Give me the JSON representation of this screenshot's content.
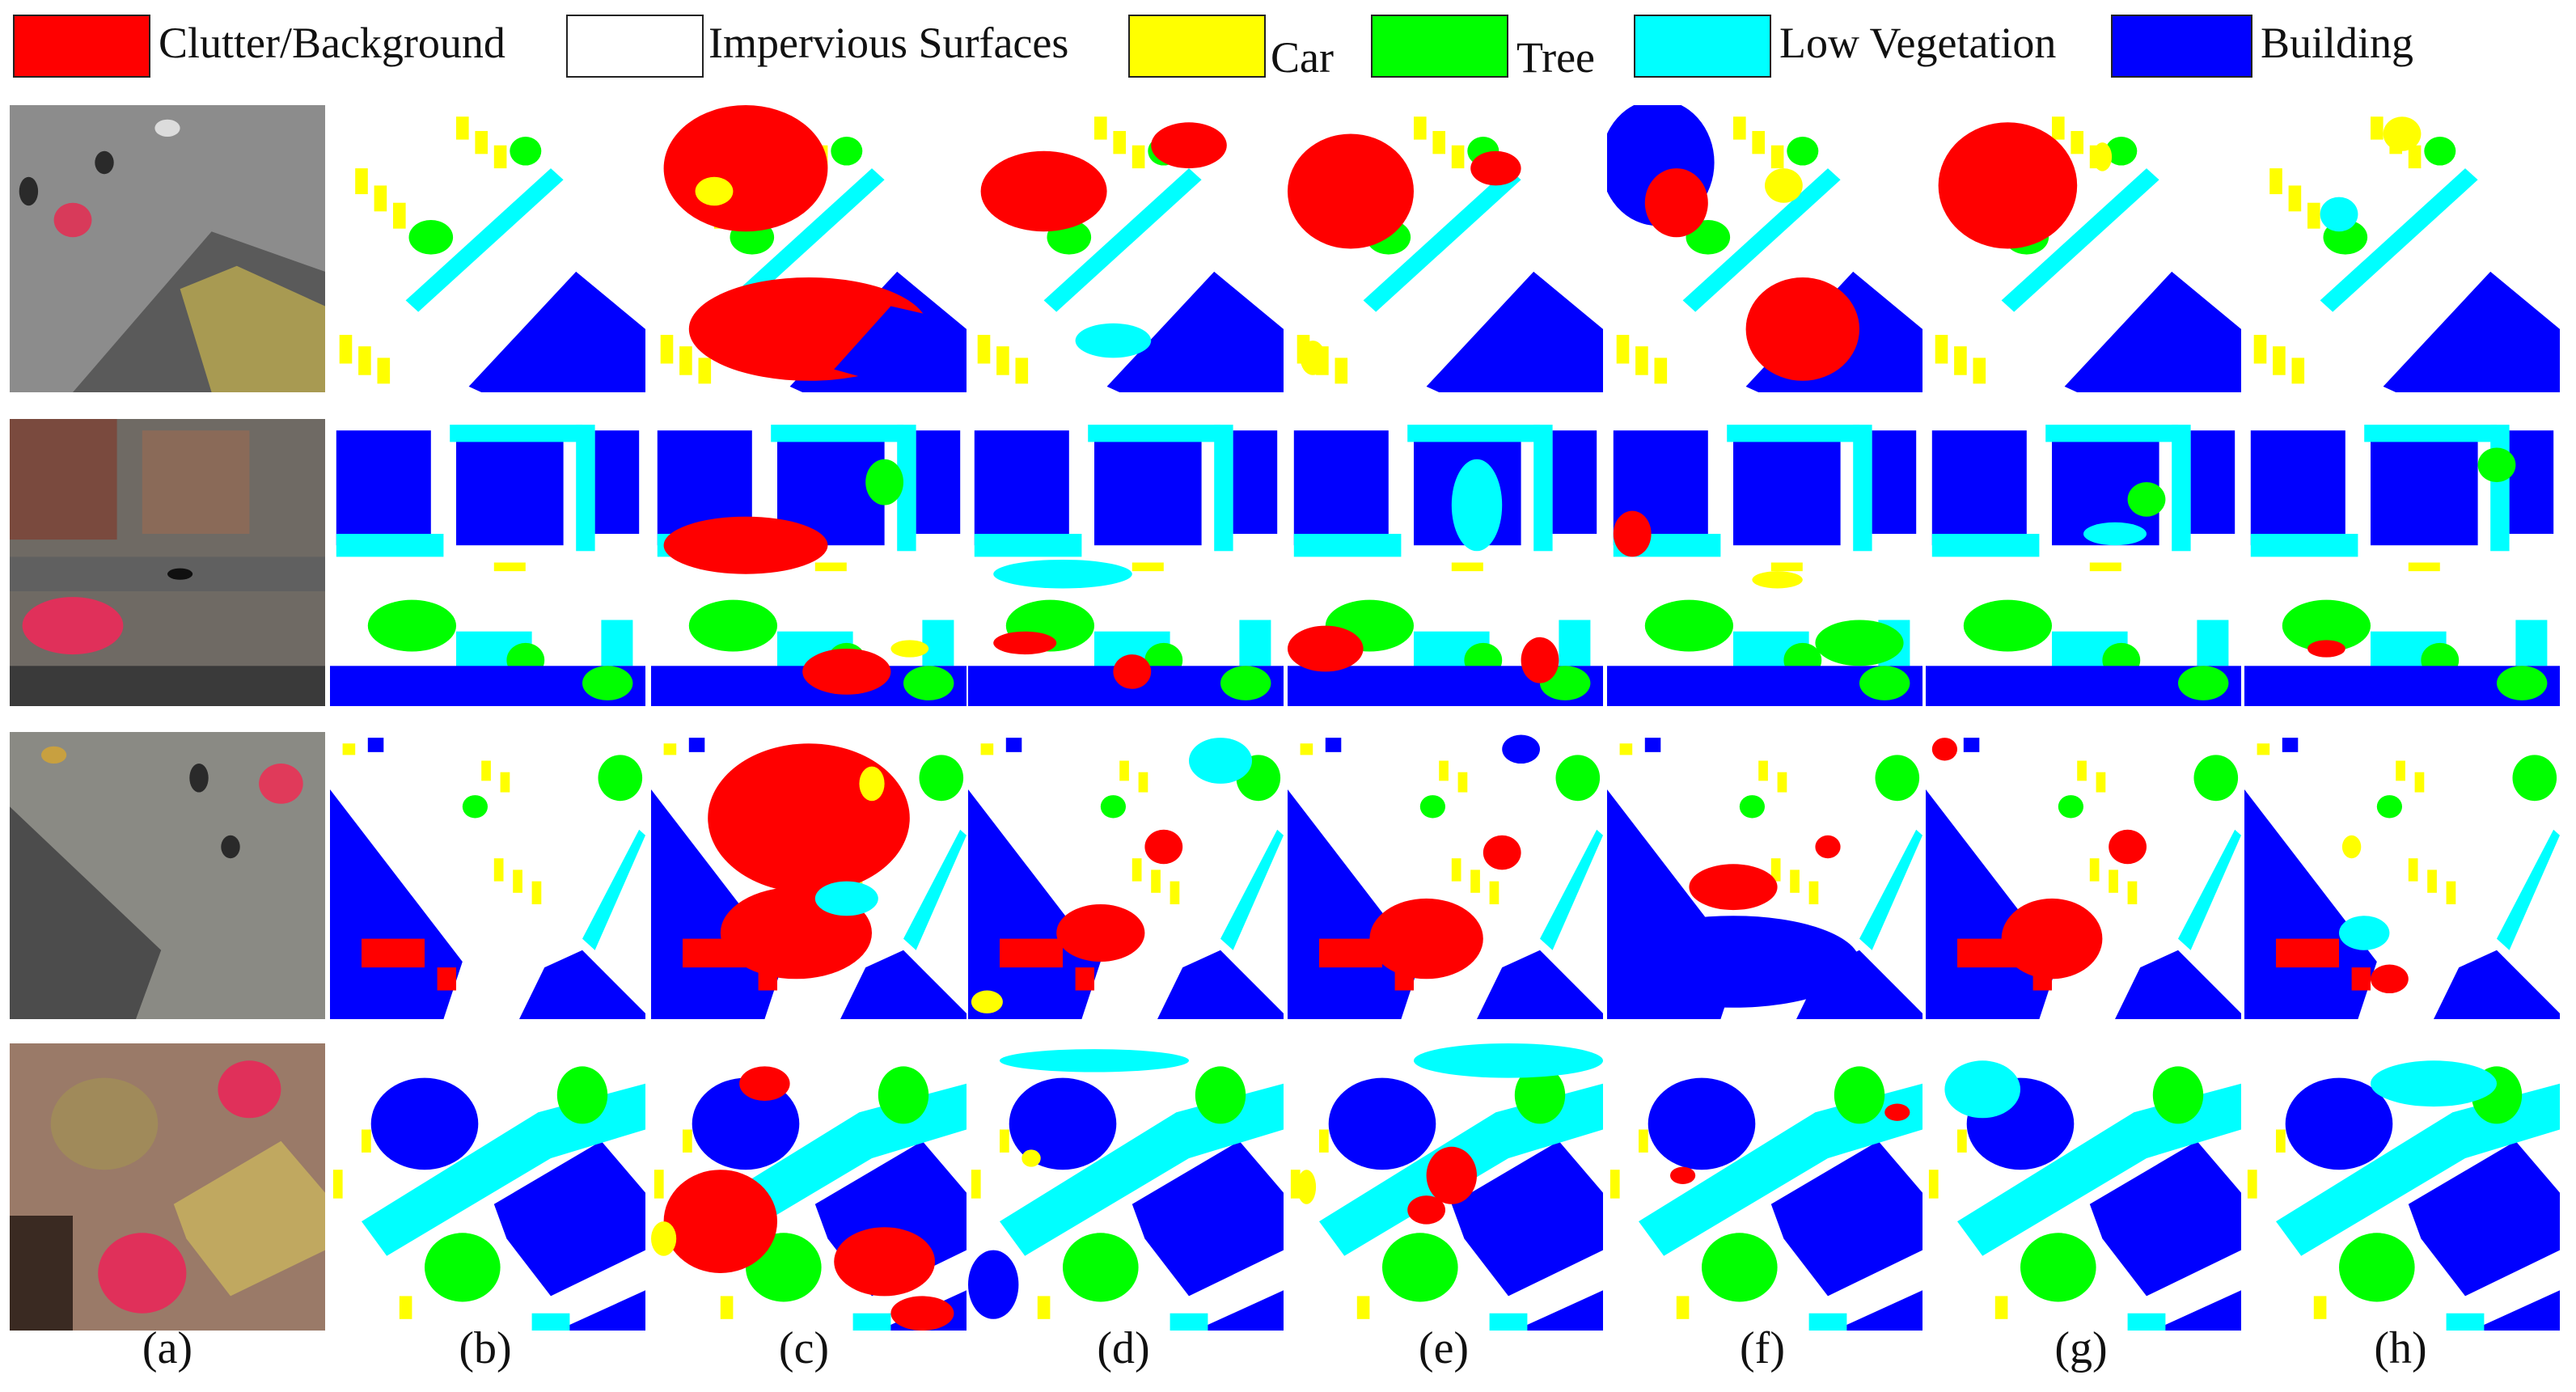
{
  "legend": [
    {
      "label": "Clutter/Background",
      "color": "#ff0000",
      "icon": "clutter-swatch"
    },
    {
      "label": "Impervious Surfaces",
      "color": "#ffffff",
      "icon": "impervious-swatch"
    },
    {
      "label": "Car",
      "color": "#ffff00",
      "icon": "car-swatch"
    },
    {
      "label": "Tree",
      "color": "#00ff00",
      "icon": "tree-swatch"
    },
    {
      "label": "Low Vegetation",
      "color": "#00ffff",
      "icon": "low-vegetation-swatch"
    },
    {
      "label": "Building",
      "color": "#0000ff",
      "icon": "building-swatch"
    }
  ],
  "columns": [
    "(a)",
    "(b)",
    "(c)",
    "(d)",
    "(e)",
    "(f)",
    "(g)",
    "(h)"
  ],
  "rows": 4,
  "colors": {
    "clutter": "#ff0000",
    "impervious": "#ffffff",
    "car": "#ffff00",
    "tree": "#00ff00",
    "lowveg": "#00ffff",
    "building": "#0000ff"
  }
}
